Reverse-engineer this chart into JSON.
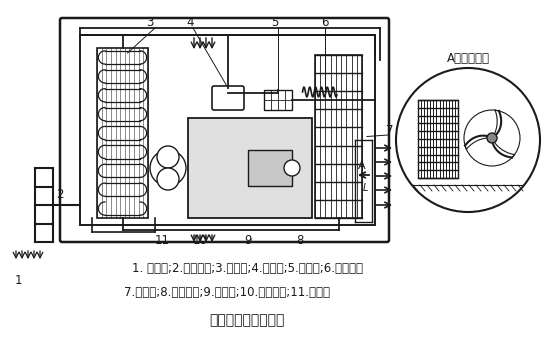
{
  "title": "电梯空调系统示意图",
  "side_title": "A向局部视图",
  "legend_line1": "1. 散流器;2.空调壳体;3.蒸发器;4.压缩机;5.过滤器;6.毛细管；",
  "legend_line2": "7.冷凝器;8.轴流风扇;9.电动机;10.离心风机;11.积水盘",
  "bg_color": "#ffffff",
  "line_color": "#1a1a1a",
  "fig_w": 5.54,
  "fig_h": 3.55,
  "dpi": 100
}
